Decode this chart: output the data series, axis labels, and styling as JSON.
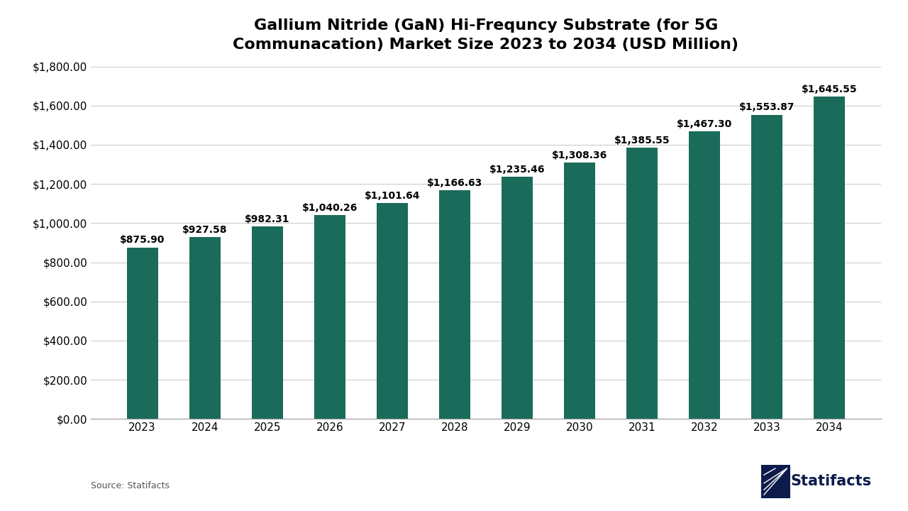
{
  "title": "Gallium Nitride (GaN) Hi-Frequncy Substrate (for 5G\nCommunacation) Market Size 2023 to 2034 (USD Million)",
  "years": [
    2023,
    2024,
    2025,
    2026,
    2027,
    2028,
    2029,
    2030,
    2031,
    2032,
    2033,
    2034
  ],
  "values": [
    875.9,
    927.58,
    982.31,
    1040.26,
    1101.64,
    1166.63,
    1235.46,
    1308.36,
    1385.55,
    1467.3,
    1553.87,
    1645.55
  ],
  "bar_color": "#1a6b5a",
  "background_color": "#ffffff",
  "grid_color": "#cccccc",
  "title_fontsize": 16,
  "tick_fontsize": 11,
  "value_label_fontsize": 10,
  "source_text": "Source: Statifacts",
  "ylim": [
    0,
    1800
  ],
  "yticks": [
    0,
    200,
    400,
    600,
    800,
    1000,
    1200,
    1400,
    1600,
    1800
  ],
  "statifacts_color": "#0d1b4b",
  "bar_width": 0.5
}
